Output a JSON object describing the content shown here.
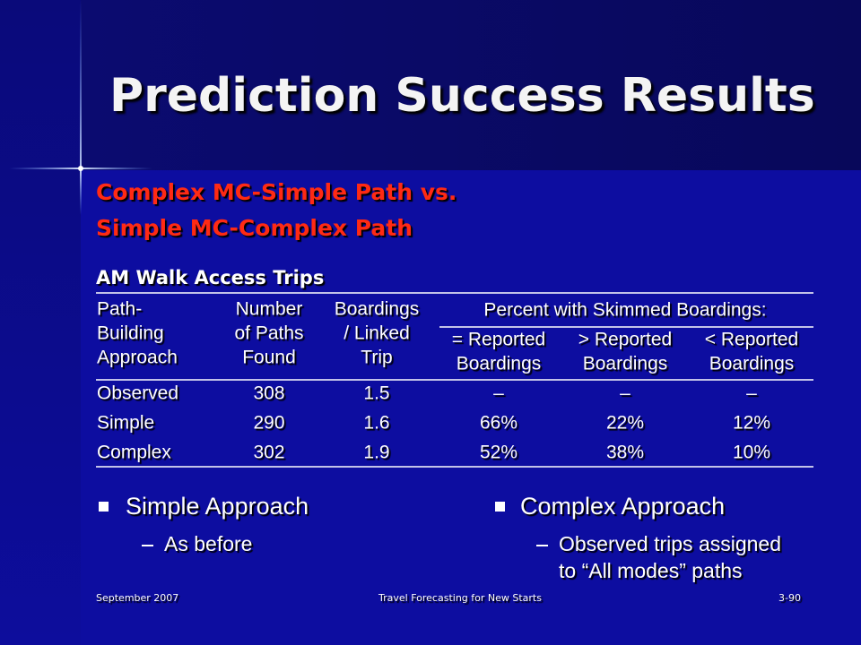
{
  "title": "Prediction Success Results",
  "subtitle": [
    "Complex MC-Simple Path vs.",
    "Simple MC-Complex Path"
  ],
  "table": {
    "caption": "AM Walk Access Trips",
    "columns": [
      [
        "Path-",
        "Building",
        "Approach"
      ],
      [
        "Number",
        "of Paths",
        "Found"
      ],
      [
        "Boardings",
        "/ Linked",
        "Trip"
      ]
    ],
    "group_header": "Percent with Skimmed Boardings:",
    "group_columns": [
      [
        "= Reported",
        "Boardings"
      ],
      [
        "> Reported",
        "Boardings"
      ],
      [
        "< Reported",
        "Boardings"
      ]
    ],
    "rows": [
      [
        "Observed",
        "308",
        "1.5",
        "–",
        "–",
        "–"
      ],
      [
        "Simple",
        "290",
        "1.6",
        "66%",
        "22%",
        "12%"
      ],
      [
        "Complex",
        "302",
        "1.9",
        "52%",
        "38%",
        "10%"
      ]
    ]
  },
  "bullets": [
    {
      "text": "Simple Approach",
      "sub": [
        "As before"
      ]
    },
    {
      "text": "Complex Approach",
      "sub": [
        "Observed trips assigned",
        "to “All modes” paths"
      ]
    }
  ],
  "footer": {
    "left": "September 2007",
    "center": "Travel Forecasting for New Starts",
    "right": "3-90"
  }
}
